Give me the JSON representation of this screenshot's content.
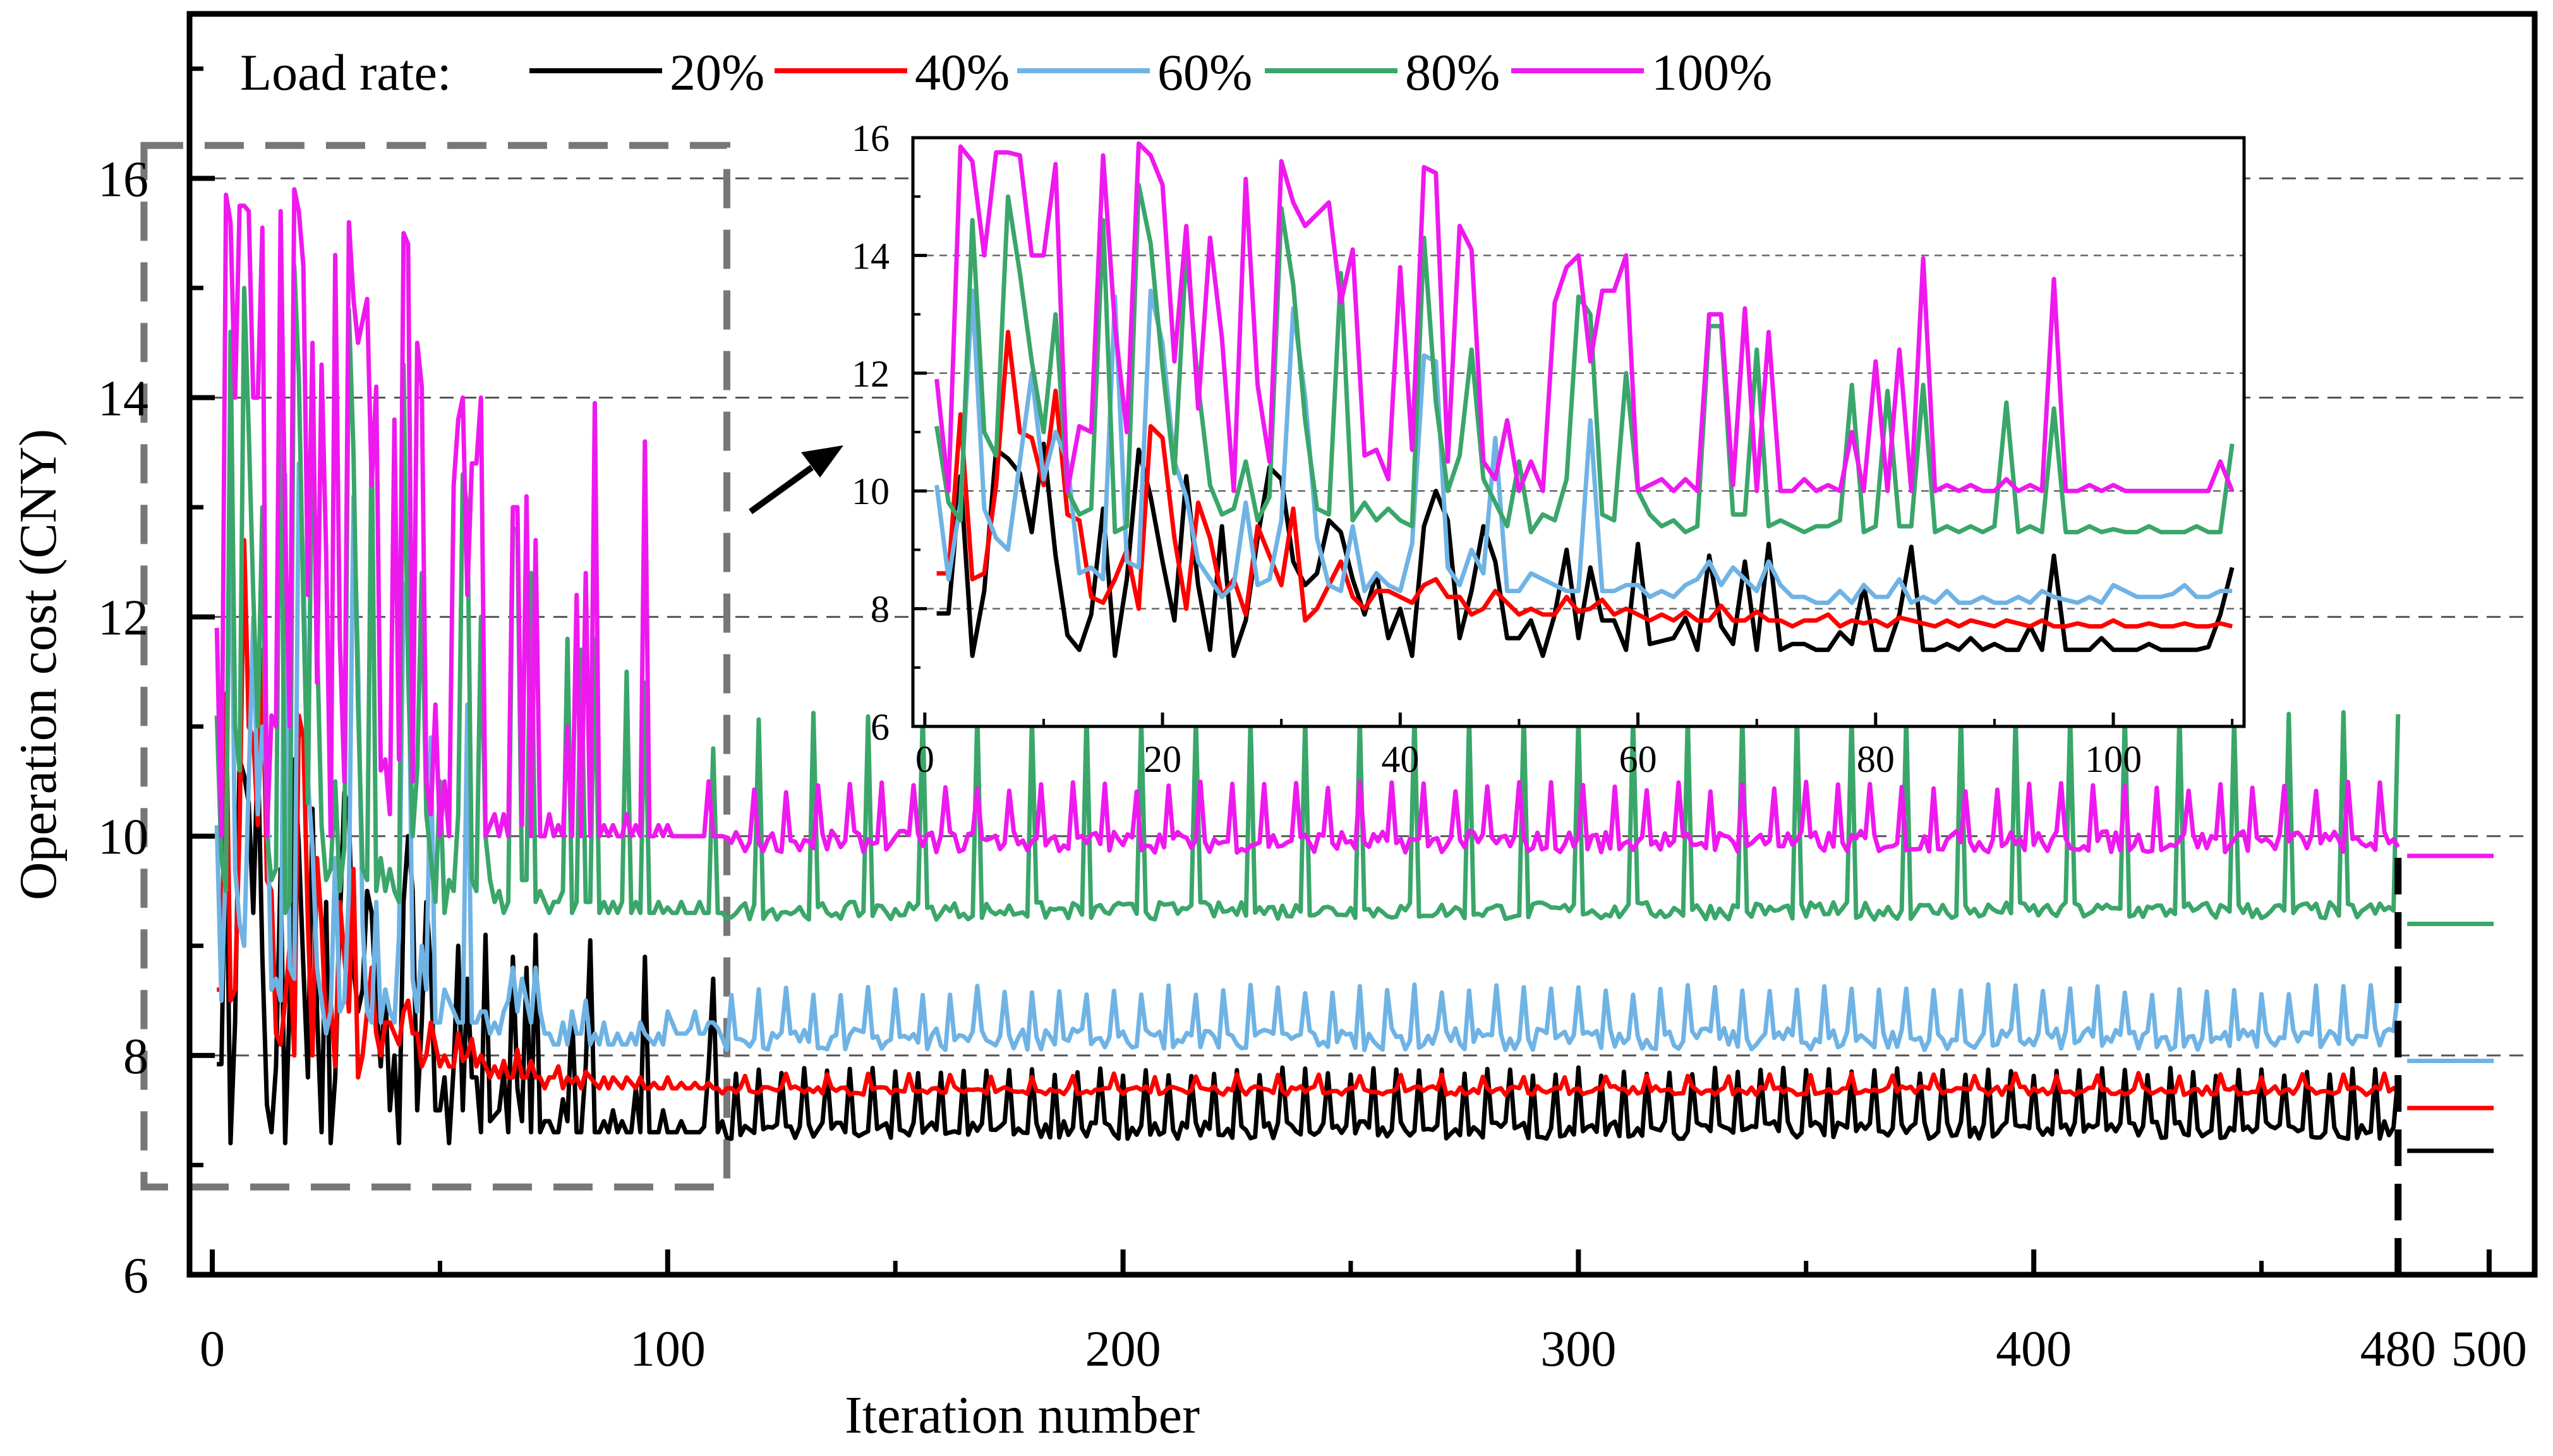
{
  "chart_data": {
    "type": "line",
    "title": "",
    "xlabel": "Iteration number",
    "ylabel": "Operation cost (CNY)",
    "xlim": [
      -5,
      510
    ],
    "ylim": [
      6,
      17.5
    ],
    "xticks": [
      0,
      100,
      200,
      300,
      400,
      480,
      500
    ],
    "xticklabels": [
      "0",
      "100",
      "200",
      "300",
      "400",
      "480",
      "500"
    ],
    "yticks": [
      6,
      8,
      10,
      12,
      14,
      16
    ],
    "yticklabels": [
      "6",
      "8",
      "10",
      "12",
      "14",
      "16"
    ],
    "gridlines_y": [
      8,
      10,
      12,
      14,
      16
    ],
    "legend": {
      "title": "Load rate:",
      "position": "top",
      "entries": [
        "20%",
        "40%",
        "60%",
        "80%",
        "100%"
      ]
    },
    "convergence_marker_x": 480,
    "zoom_region": {
      "x": [
        -15,
        113
      ],
      "y": [
        6.8,
        16.3
      ]
    },
    "series": [
      {
        "name": "20%",
        "color": "#000000",
        "head": [
          7.92,
          7.92,
          10.25,
          7.2,
          8.3,
          10.7,
          10.55,
          10.3,
          9.3,
          10.8,
          8.9,
          7.55,
          7.3,
          7.9,
          9.7,
          7.2,
          8.5,
          10.7,
          9.9,
          8.8,
          7.8,
          10.25,
          8.4,
          7.3,
          9.4,
          7.2,
          7.8,
          9.2,
          10.4,
          10.2,
          8.8,
          8.4,
          8.6,
          9.5,
          9.3,
          8.5,
          7.9,
          8.6,
          7.5,
          8.0,
          7.2,
          9.4,
          10.0,
          9.5,
          7.5,
          8.3,
          9.4,
          8.8,
          7.5,
          7.5,
          7.8,
          7.2,
          7.9,
          9.0,
          7.5,
          8.7,
          7.8,
          7.8,
          7.3,
          9.1,
          7.4,
          7.45,
          7.5,
          7.85,
          7.3,
          8.9,
          7.7,
          7.4,
          8.8,
          7.3,
          9.1,
          7.3,
          7.4,
          7.4,
          7.3,
          7.3,
          7.6,
          7.4,
          8.4,
          7.3,
          7.3,
          7.9,
          9.05,
          7.3,
          7.3,
          7.4,
          7.3,
          7.5,
          7.3,
          7.4,
          7.3,
          7.3,
          7.7,
          7.3,
          8.9,
          7.3,
          7.3,
          7.3,
          7.5,
          7.3,
          7.3,
          7.3,
          7.4,
          7.3,
          7.3,
          7.3,
          7.3,
          7.35,
          7.9,
          8.7,
          7.3,
          7.4,
          7.25
        ],
        "tail": {
          "base": 7.32,
          "spike": 7.85,
          "period": 5,
          "noise": 0.08
        },
        "final": 7.13
      },
      {
        "name": "40%",
        "color": "#ff0000",
        "head": [
          8.6,
          8.6,
          11.3,
          8.5,
          8.6,
          10.1,
          12.7,
          11.0,
          10.9,
          10.1,
          11.7,
          9.6,
          9.5,
          8.2,
          8.1,
          8.5,
          9.0,
          8.0,
          11.1,
          10.9,
          9.2,
          8.0,
          9.8,
          9.2,
          8.2,
          8.5,
          7.9,
          9.4,
          8.9,
          8.4,
          9.7,
          7.8,
          8.0,
          8.4,
          8.8,
          8.2,
          8.0,
          8.3,
          8.3,
          8.2,
          8.1,
          8.4,
          8.5,
          8.2,
          8.2,
          7.9,
          8.0,
          8.3,
          8.1,
          7.9,
          8.0,
          7.9,
          7.9,
          8.2,
          7.95,
          8.0,
          8.15,
          7.9,
          8.0,
          7.9,
          7.8,
          7.9,
          7.8,
          7.95,
          7.8,
          7.8,
          8.05,
          7.8,
          7.8,
          7.95,
          7.8,
          7.8,
          7.7,
          7.8,
          7.8,
          7.9,
          7.7,
          7.8,
          7.75,
          7.8,
          7.7,
          7.85,
          7.8,
          7.75,
          7.7,
          7.8,
          7.7,
          7.8,
          7.75,
          7.7,
          7.8,
          7.75,
          7.7,
          7.8,
          7.7,
          7.7,
          7.75,
          7.7,
          7.7,
          7.8,
          7.7,
          7.7,
          7.75,
          7.7,
          7.7,
          7.75,
          7.7,
          7.7,
          7.75,
          7.7,
          7.7
        ],
        "tail": {
          "base": 7.68,
          "spike": 7.82,
          "period": 9,
          "noise": 0.04
        },
        "final": 7.52
      },
      {
        "name": "60%",
        "color": "#6fb3e5",
        "head": [
          10.1,
          8.5,
          9.8,
          13.4,
          9.7,
          9.2,
          9.0,
          10.5,
          12.0,
          10.2,
          11.0,
          10.5,
          8.6,
          8.7,
          8.5,
          13.3,
          8.8,
          8.7,
          13.4,
          12.5,
          10.5,
          9.9,
          8.8,
          8.5,
          8.2,
          8.4,
          9.8,
          8.4,
          8.5,
          9.5,
          13.1,
          11.6,
          9.2,
          8.4,
          8.3,
          9.4,
          8.3,
          8.6,
          8.4,
          8.3,
          9.1,
          12.3,
          12.2,
          8.7,
          8.4,
          9.0,
          8.6,
          10.9,
          8.3,
          8.3,
          8.6,
          8.5,
          8.4,
          8.3,
          8.3,
          11.2,
          8.3,
          8.3,
          8.4,
          8.4,
          8.2,
          8.3,
          8.2,
          8.4,
          8.5,
          8.8,
          8.4,
          8.7,
          8.5,
          8.3,
          8.8,
          8.4,
          8.2,
          8.2,
          8.1,
          8.1,
          8.3,
          8.1,
          8.4,
          8.2,
          8.2,
          8.5,
          8.1,
          8.2,
          8.1,
          8.3,
          8.1,
          8.1,
          8.2,
          8.1,
          8.1,
          8.2,
          8.1,
          8.3,
          8.2,
          8.15,
          8.1,
          8.2,
          8.1,
          8.4,
          8.3,
          8.2,
          8.2,
          8.2,
          8.25,
          8.4,
          8.2,
          8.2,
          8.3,
          8.3,
          8.25
        ],
        "tail": {
          "base": 8.15,
          "spike": 8.6,
          "period": 6,
          "noise": 0.1
        },
        "final": 7.95
      },
      {
        "name": "80%",
        "color": "#3aa66a",
        "head": [
          11.1,
          9.8,
          9.5,
          14.6,
          11.0,
          10.6,
          15.0,
          13.7,
          12.2,
          11.0,
          13.0,
          10.0,
          9.6,
          9.7,
          14.6,
          9.3,
          9.4,
          15.2,
          14.2,
          12.1,
          10.3,
          14.1,
          11.8,
          10.1,
          9.6,
          9.7,
          10.5,
          9.5,
          9.9,
          14.8,
          13.5,
          11.2,
          9.7,
          9.6,
          13.7,
          9.5,
          9.8,
          9.5,
          9.7,
          9.5,
          9.4,
          14.3,
          11.5,
          10.0,
          10.6,
          12.4,
          10.2,
          9.8,
          9.4,
          10.5,
          9.3,
          9.6,
          9.5,
          10.2,
          13.3,
          13.0,
          9.6,
          9.5,
          12.0,
          10.0,
          9.6,
          9.4,
          9.5,
          9.3,
          9.4,
          12.8,
          12.8,
          9.6,
          9.6,
          12.4,
          9.4,
          9.5,
          9.4,
          9.3,
          9.4,
          9.4,
          9.5,
          11.8,
          9.3,
          9.4,
          11.7,
          9.4,
          9.4,
          11.8,
          9.3,
          9.4,
          9.3,
          9.4,
          9.3,
          9.4,
          11.5,
          9.3,
          9.4,
          9.3,
          11.4,
          9.3,
          9.3,
          9.4,
          9.3,
          9.35,
          9.3,
          9.3,
          9.4,
          9.3,
          9.3,
          9.3,
          9.4,
          9.3,
          9.3,
          10.8,
          9.3,
          9.3,
          9.25
        ],
        "tail": {
          "base": 9.32,
          "spike": 11.1,
          "period": 12,
          "noise": 0.08
        },
        "final": 9.2
      },
      {
        "name": "100%",
        "color": "#ee19ee",
        "head": [
          11.9,
          10.0,
          15.85,
          15.6,
          14.0,
          15.75,
          15.75,
          15.7,
          14.0,
          14.0,
          15.55,
          10.0,
          11.1,
          11.0,
          15.7,
          12.8,
          11.0,
          15.9,
          15.7,
          15.2,
          12.2,
          14.5,
          11.4,
          14.3,
          12.6,
          10.0,
          15.3,
          11.8,
          10.5,
          15.6,
          14.9,
          14.5,
          14.7,
          14.9,
          13.2,
          14.1,
          10.6,
          10.7,
          10.2,
          13.8,
          10.7,
          15.5,
          15.4,
          10.5,
          14.5,
          14.1,
          10.5,
          10.2,
          11.2,
          10.0,
          10.5,
          10.0,
          13.2,
          13.8,
          14.0,
          12.2,
          13.4,
          13.4,
          14.0,
          10.0,
          10.1,
          10.2,
          10.0,
          10.2,
          10.0,
          13.0,
          13.0,
          10.1,
          13.1,
          10.0,
          12.7,
          10.0,
          10.0,
          10.2,
          10.0,
          10.1,
          10.0,
          11.0,
          10.0,
          12.2,
          10.0,
          12.4,
          10.0,
          13.95,
          10.0,
          10.1,
          10.0,
          10.1,
          10.0,
          10.0,
          10.2,
          10.0,
          10.1,
          10.0,
          13.6,
          10.0,
          10.0,
          10.1,
          10.0,
          10.1,
          10.0,
          10.0,
          10.0,
          10.0,
          10.0,
          10.0,
          10.0,
          10.0,
          10.5,
          10.0,
          10.0,
          10.0
        ],
        "tail": {
          "base": 9.95,
          "spike": 10.45,
          "period": 7,
          "noise": 0.1
        },
        "final": 9.82
      }
    ],
    "inset": {
      "xlim": [
        -1,
        111
      ],
      "ylim": [
        6,
        16
      ],
      "xticks": [
        0,
        20,
        40,
        60,
        80,
        100
      ],
      "xticklabels": [
        "0",
        "20",
        "40",
        "60",
        "80",
        "100"
      ],
      "yticks": [
        6,
        8,
        10,
        12,
        14,
        16
      ],
      "yticklabels": [
        "6",
        "8",
        "10",
        "12",
        "14",
        "16"
      ],
      "gridlines_y": [
        8,
        10,
        12,
        14
      ]
    }
  }
}
